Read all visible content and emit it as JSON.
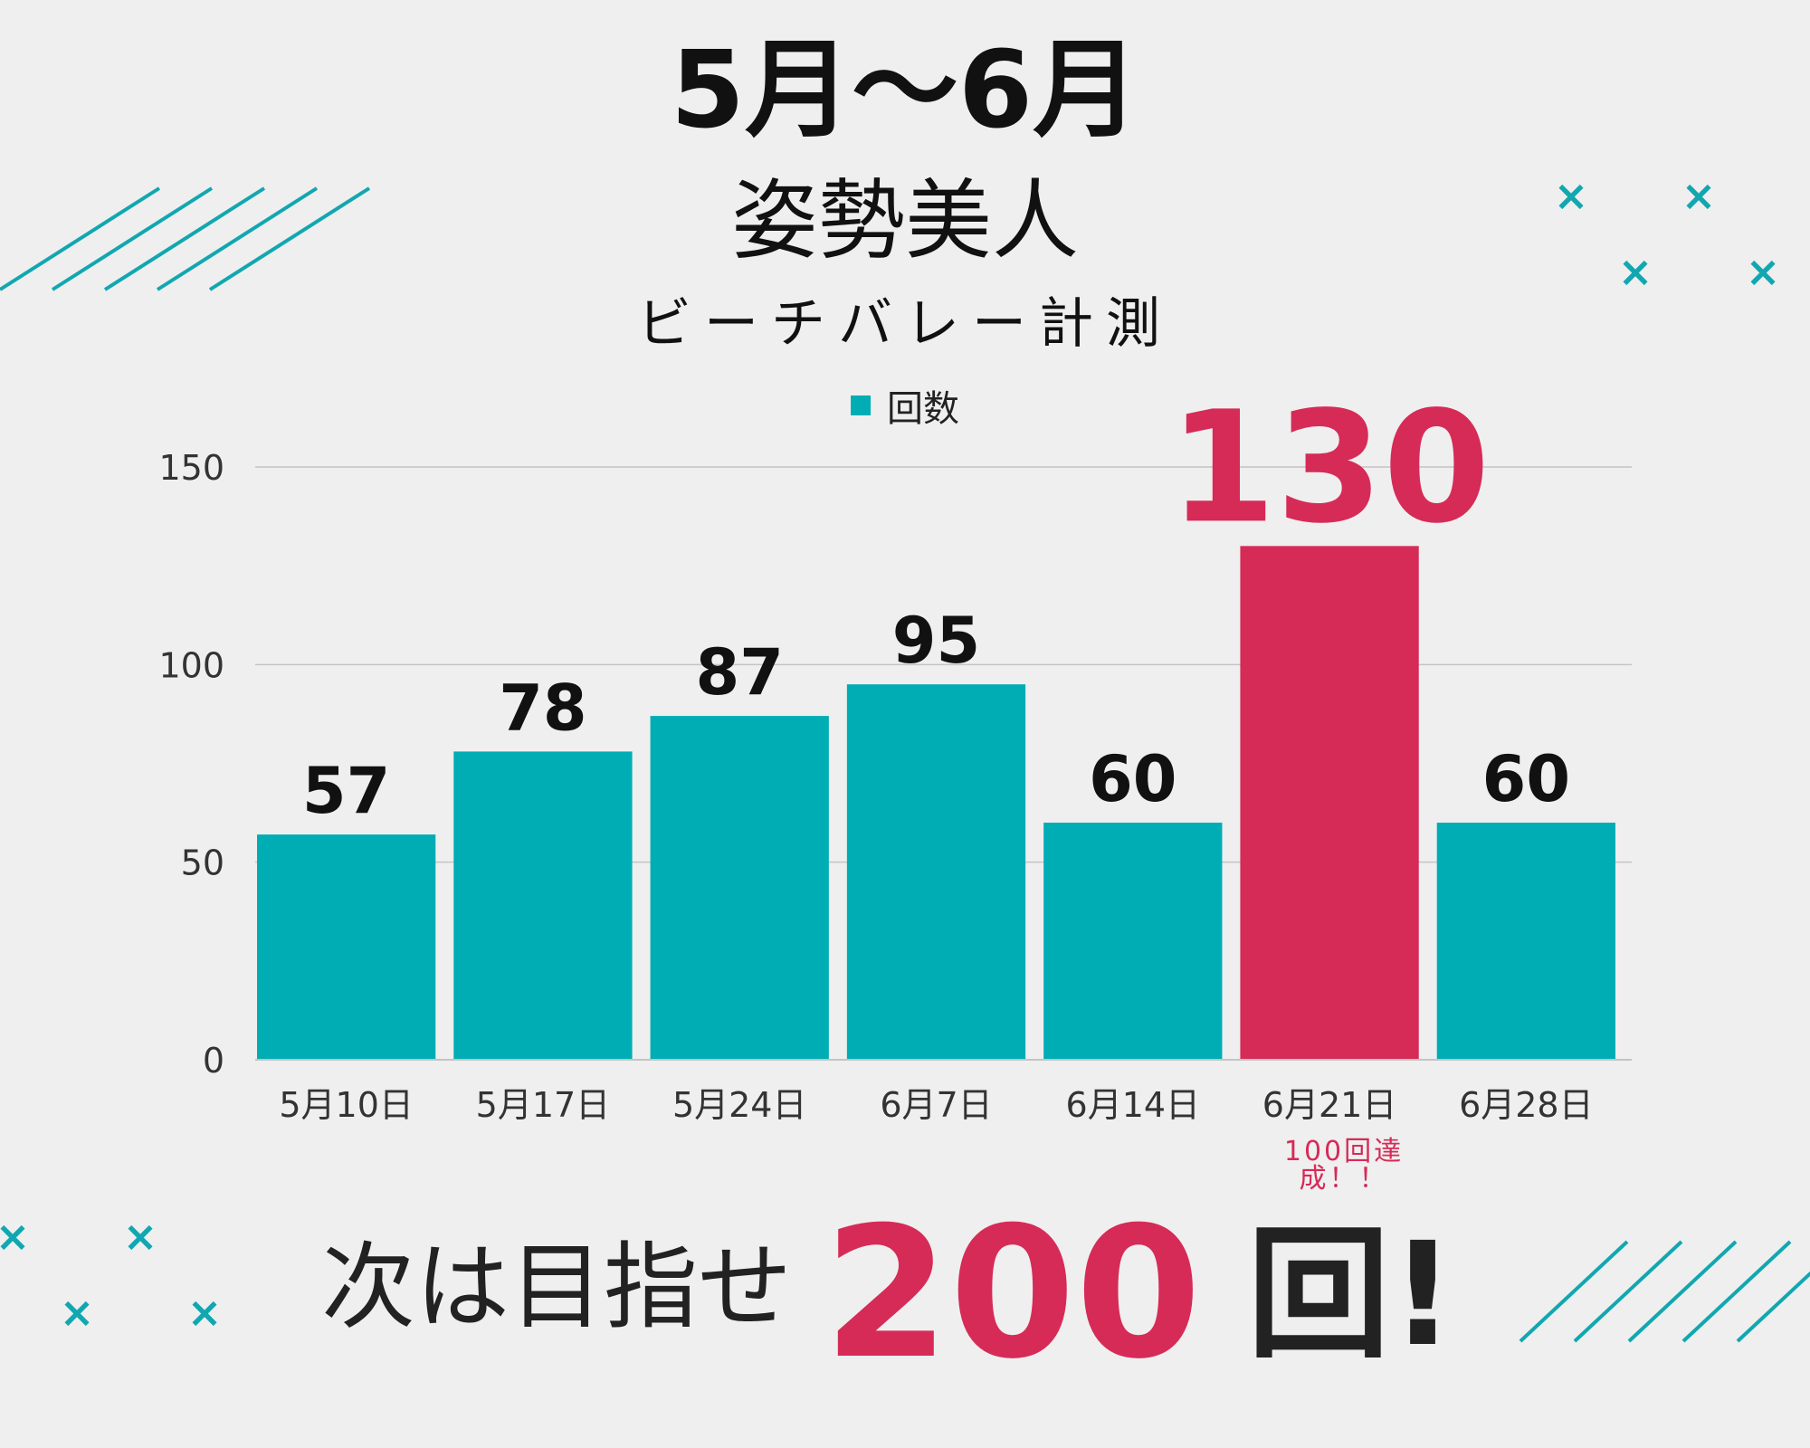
{
  "title": "5月〜6月",
  "subtitle": "姿勢美人",
  "subtitle2": "ビーチバレー計測",
  "footer": {
    "text": "次は目指せ",
    "number": "200",
    "unit": "回!"
  },
  "annotation": "100回達成！！",
  "colors": {
    "bar": "#00adb5",
    "highlight": "#d62b57",
    "background": "#efefef",
    "grid": "#c4c4c4",
    "decoration": "#12a7b0"
  },
  "chart_data": {
    "type": "bar",
    "title": "5月〜6月",
    "xlabel": "",
    "ylabel": "",
    "categories": [
      "5月10日",
      "5月17日",
      "5月24日",
      "6月7日",
      "6月14日",
      "6月21日",
      "6月28日"
    ],
    "series": [
      {
        "name": "回数",
        "values": [
          57,
          78,
          87,
          95,
          60,
          130,
          60
        ]
      }
    ],
    "highlight_index": 5,
    "ylim": [
      0,
      150
    ],
    "yticks": [
      0,
      50,
      100,
      150
    ],
    "grid": true,
    "legend": "top-center"
  }
}
